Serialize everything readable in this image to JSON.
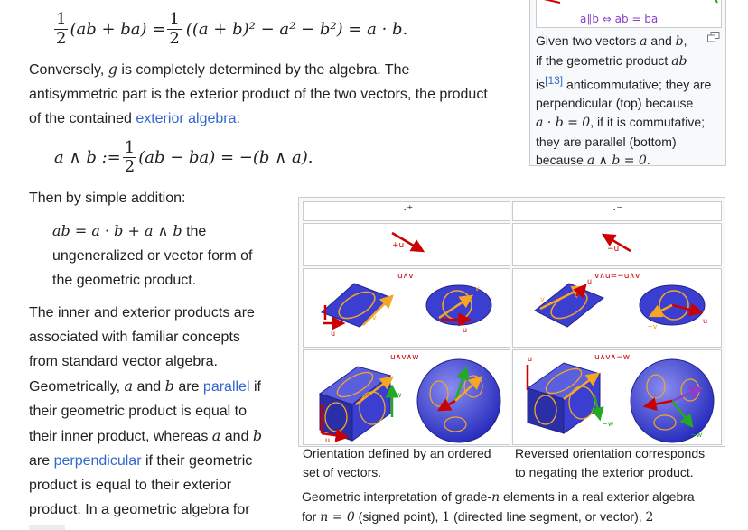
{
  "equations": {
    "eq1": {
      "frac_num": "1",
      "frac_den": "2",
      "lhs_body": "(ab + ba) = ",
      "rhs_body": "((a + b)² − a² − b²) = a · b."
    },
    "eq2": {
      "lhs": "a ∧ b := ",
      "frac_num": "1",
      "frac_den": "2",
      "rhs": "(ab − ba) = −(b ∧ a)."
    }
  },
  "paragraphs": {
    "p1_a": "Conversely, ",
    "p1_g": "g",
    "p1_b": " is completely determined by the algebra. The antisymmetric part is the exterior product of the two vectors, the product of the contained ",
    "p1_link": "exterior algebra",
    "p1_c": ":",
    "p2": "Then by simple addition:",
    "indent_math": "ab = a · b + a ∧ b",
    "indent_text_a": " the",
    "indent_text_b": "ungeneralized or vector form of",
    "indent_text_c": "the geometric product.",
    "p3_l1": "The inner and exterior products are",
    "p3_l2": "associated with familiar concepts",
    "p3_l3": "from standard vector algebra.",
    "p3_l4_a": "Geometrically, ",
    "p3_l4_a_math": "a",
    "p3_l4_b": " and ",
    "p3_l4_b_math": "b",
    "p3_l4_c": " are ",
    "p3_l4_link": "parallel",
    "p3_l4_d": " if",
    "p3_l5": "their geometric product is equal to",
    "p3_l6_a": "their inner product, whereas ",
    "p3_l6_m1": "a",
    "p3_l6_b": " and ",
    "p3_l6_m2": "b",
    "p3_l7_a": "are ",
    "p3_l7_link": "perpendicular",
    "p3_l7_b": " if their geometric",
    "p3_l8": "product is equal to their exterior",
    "p3_l9": "product. In a geometric algebra for"
  },
  "infobox": {
    "top_label": "a∥b ⇔ ab = ba",
    "caption_l1_a": "Given two vectors ",
    "caption_l1_m1": "a",
    "caption_l1_b": " and ",
    "caption_l1_m2": "b",
    "caption_l1_c": ",",
    "caption_l2_a": "if the geometric product ",
    "caption_l2_m": "ab",
    "caption_l3_a": "is",
    "caption_l3_ref": "[13]",
    "caption_l3_b": " anticommutative; they are",
    "caption_l4": "perpendicular (top) because",
    "caption_l5_m": "a · b = 0",
    "caption_l5_b": ", if it is commutative;",
    "caption_l6": "they are parallel (bottom)",
    "caption_l7_a": "because ",
    "caption_l7_m": "a ∧ b = 0",
    "caption_l7_b": "."
  },
  "figure": {
    "headers": [
      "·⁺",
      "·⁻"
    ],
    "row1_labels": [
      "+u",
      "−u"
    ],
    "row2_labels": [
      "u∧v",
      "v∧u=−u∧v"
    ],
    "row3_labels": [
      "u∧v∧w",
      "u∧v∧−w"
    ],
    "vec_labels": {
      "u": "u",
      "v": "v",
      "w": "w",
      "mv": "−v",
      "mw": "−w"
    },
    "subcaption_left_l1": "Orientation defined by an ordered",
    "subcaption_left_l2": "set of vectors.",
    "subcaption_right_l1": "Reversed orientation corresponds",
    "subcaption_right_l2": "to negating the exterior product.",
    "main_caption_l1_a": "Geometric interpretation of grade-",
    "main_caption_l1_m": "n",
    "main_caption_l1_b": " elements in a real exterior algebra",
    "main_caption_l2_a": "for ",
    "main_caption_l2_m": "n = 0",
    "main_caption_l2_b": " (signed point), ",
    "main_caption_l2_m2": "1",
    "main_caption_l2_c": " (directed line segment, or vector), ",
    "main_caption_l2_m3": "2"
  },
  "colors": {
    "text": "#202122",
    "link": "#3366cc",
    "vector_red": "#cc0000",
    "vector_orange": "#f5a623",
    "vector_green": "#22aa22",
    "plane_blue": "#3b3fd1",
    "label_purple": "#8b3fc9"
  }
}
